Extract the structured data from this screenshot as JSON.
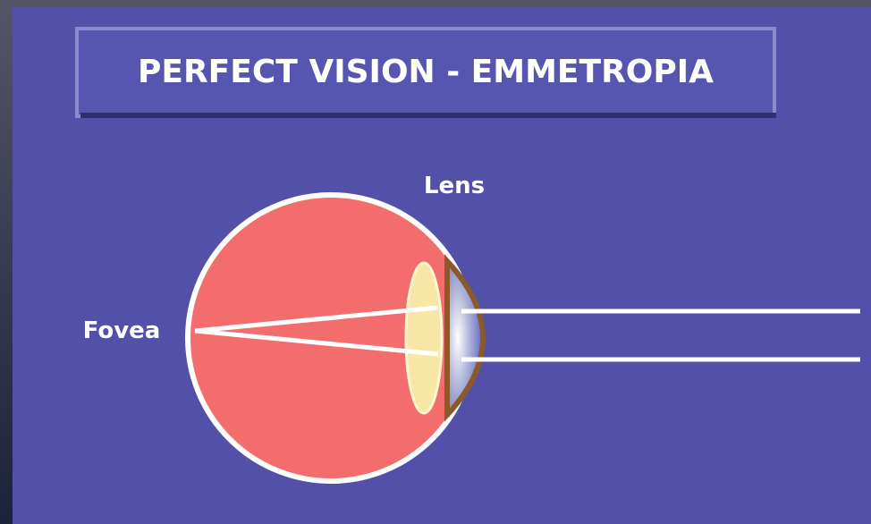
{
  "title": "PERFECT VISION - EMMETROPIA",
  "labels": {
    "lens": "Lens",
    "fovea": "Fovea"
  }
}
